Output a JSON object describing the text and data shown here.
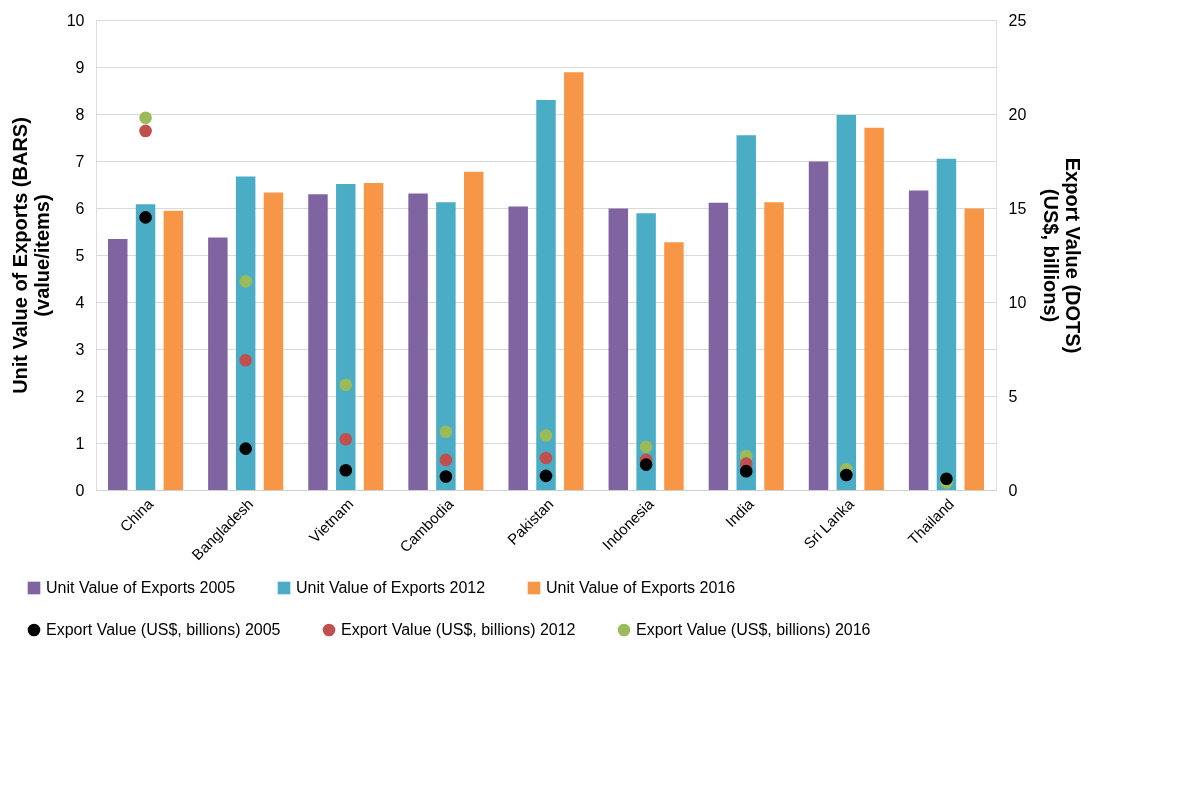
{
  "chart_data": {
    "type": "bar",
    "categories": [
      "China",
      "Bangladesh",
      "Vietnam",
      "Cambodia",
      "Pakistan",
      "Indonesia",
      "India",
      "Sri Lanka",
      "Thailand"
    ],
    "ylabel": "Unit Value of Exports (BARS)\n(value/items)",
    "y2label": "Export Value (DOTS)\n(US$, billions)",
    "series": [
      {
        "name": "Unit Value of Exports 2005",
        "type": "bar",
        "color": "#8064a2",
        "values": [
          5.34,
          5.37,
          6.29,
          6.31,
          6.03,
          5.99,
          6.11,
          6.99,
          6.37
        ]
      },
      {
        "name": "Unit Value of Exports 2012",
        "type": "bar",
        "color": "#4bacc6",
        "values": [
          6.08,
          6.67,
          6.51,
          6.12,
          8.3,
          5.89,
          7.55,
          7.98,
          7.05
        ]
      },
      {
        "name": "Unit Value of Exports 2016",
        "type": "bar",
        "color": "#f79646",
        "values": [
          5.94,
          6.33,
          6.53,
          6.77,
          8.89,
          5.27,
          6.12,
          7.71,
          5.99
        ]
      },
      {
        "name": "Export Value (US$, billions) 2005",
        "type": "scatter",
        "axis": "y2",
        "color": "#000000",
        "values": [
          14.5,
          2.2,
          1.05,
          0.72,
          0.75,
          1.35,
          1.0,
          0.8,
          0.6
        ]
      },
      {
        "name": "Export Value (US$, billions) 2012",
        "type": "scatter",
        "axis": "y2",
        "color": "#c0504d",
        "values": [
          19.1,
          6.9,
          2.7,
          1.6,
          1.7,
          1.6,
          1.4,
          null,
          null
        ]
      },
      {
        "name": "Export Value (US$, billions) 2016",
        "type": "scatter",
        "axis": "y2",
        "color": "#9bbb59",
        "values": [
          19.8,
          11.1,
          5.6,
          3.1,
          2.9,
          2.3,
          1.8,
          1.1,
          0.4
        ]
      }
    ],
    "ylim": [
      0,
      10
    ],
    "yticks": [
      0,
      1,
      2,
      3,
      4,
      5,
      6,
      7,
      8,
      9,
      10
    ],
    "y2lim": [
      0,
      25
    ],
    "y2ticks": [
      0,
      5,
      10,
      15,
      20,
      25
    ],
    "grid": "y",
    "legend": "bottom",
    "marker": "circle"
  }
}
